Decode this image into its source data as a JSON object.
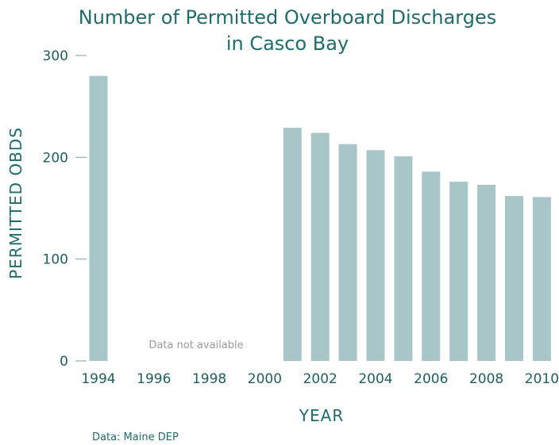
{
  "chart_data": {
    "type": "bar",
    "title_line1": "Number of Permitted Overboard Discharges",
    "title_line2": "in Casco Bay",
    "xlabel": "YEAR",
    "ylabel": "PERMITTED OBDS",
    "ylim": [
      0,
      300
    ],
    "yticks": [
      0,
      100,
      200,
      300
    ],
    "xticks": [
      1994,
      1996,
      1998,
      2000,
      2002,
      2004,
      2006,
      2008,
      2010
    ],
    "x": [
      1994,
      2001,
      2002,
      2003,
      2004,
      2005,
      2006,
      2007,
      2008,
      2009,
      2010
    ],
    "values": [
      280,
      229,
      224,
      213,
      207,
      201,
      186,
      176,
      173,
      162,
      161
    ],
    "annotation": "Data not available",
    "source": "Data: Maine DEP",
    "bar_color": "#a8c6c7",
    "text_color": "#1f6b6b",
    "axis_color": "#7aa6a6"
  }
}
